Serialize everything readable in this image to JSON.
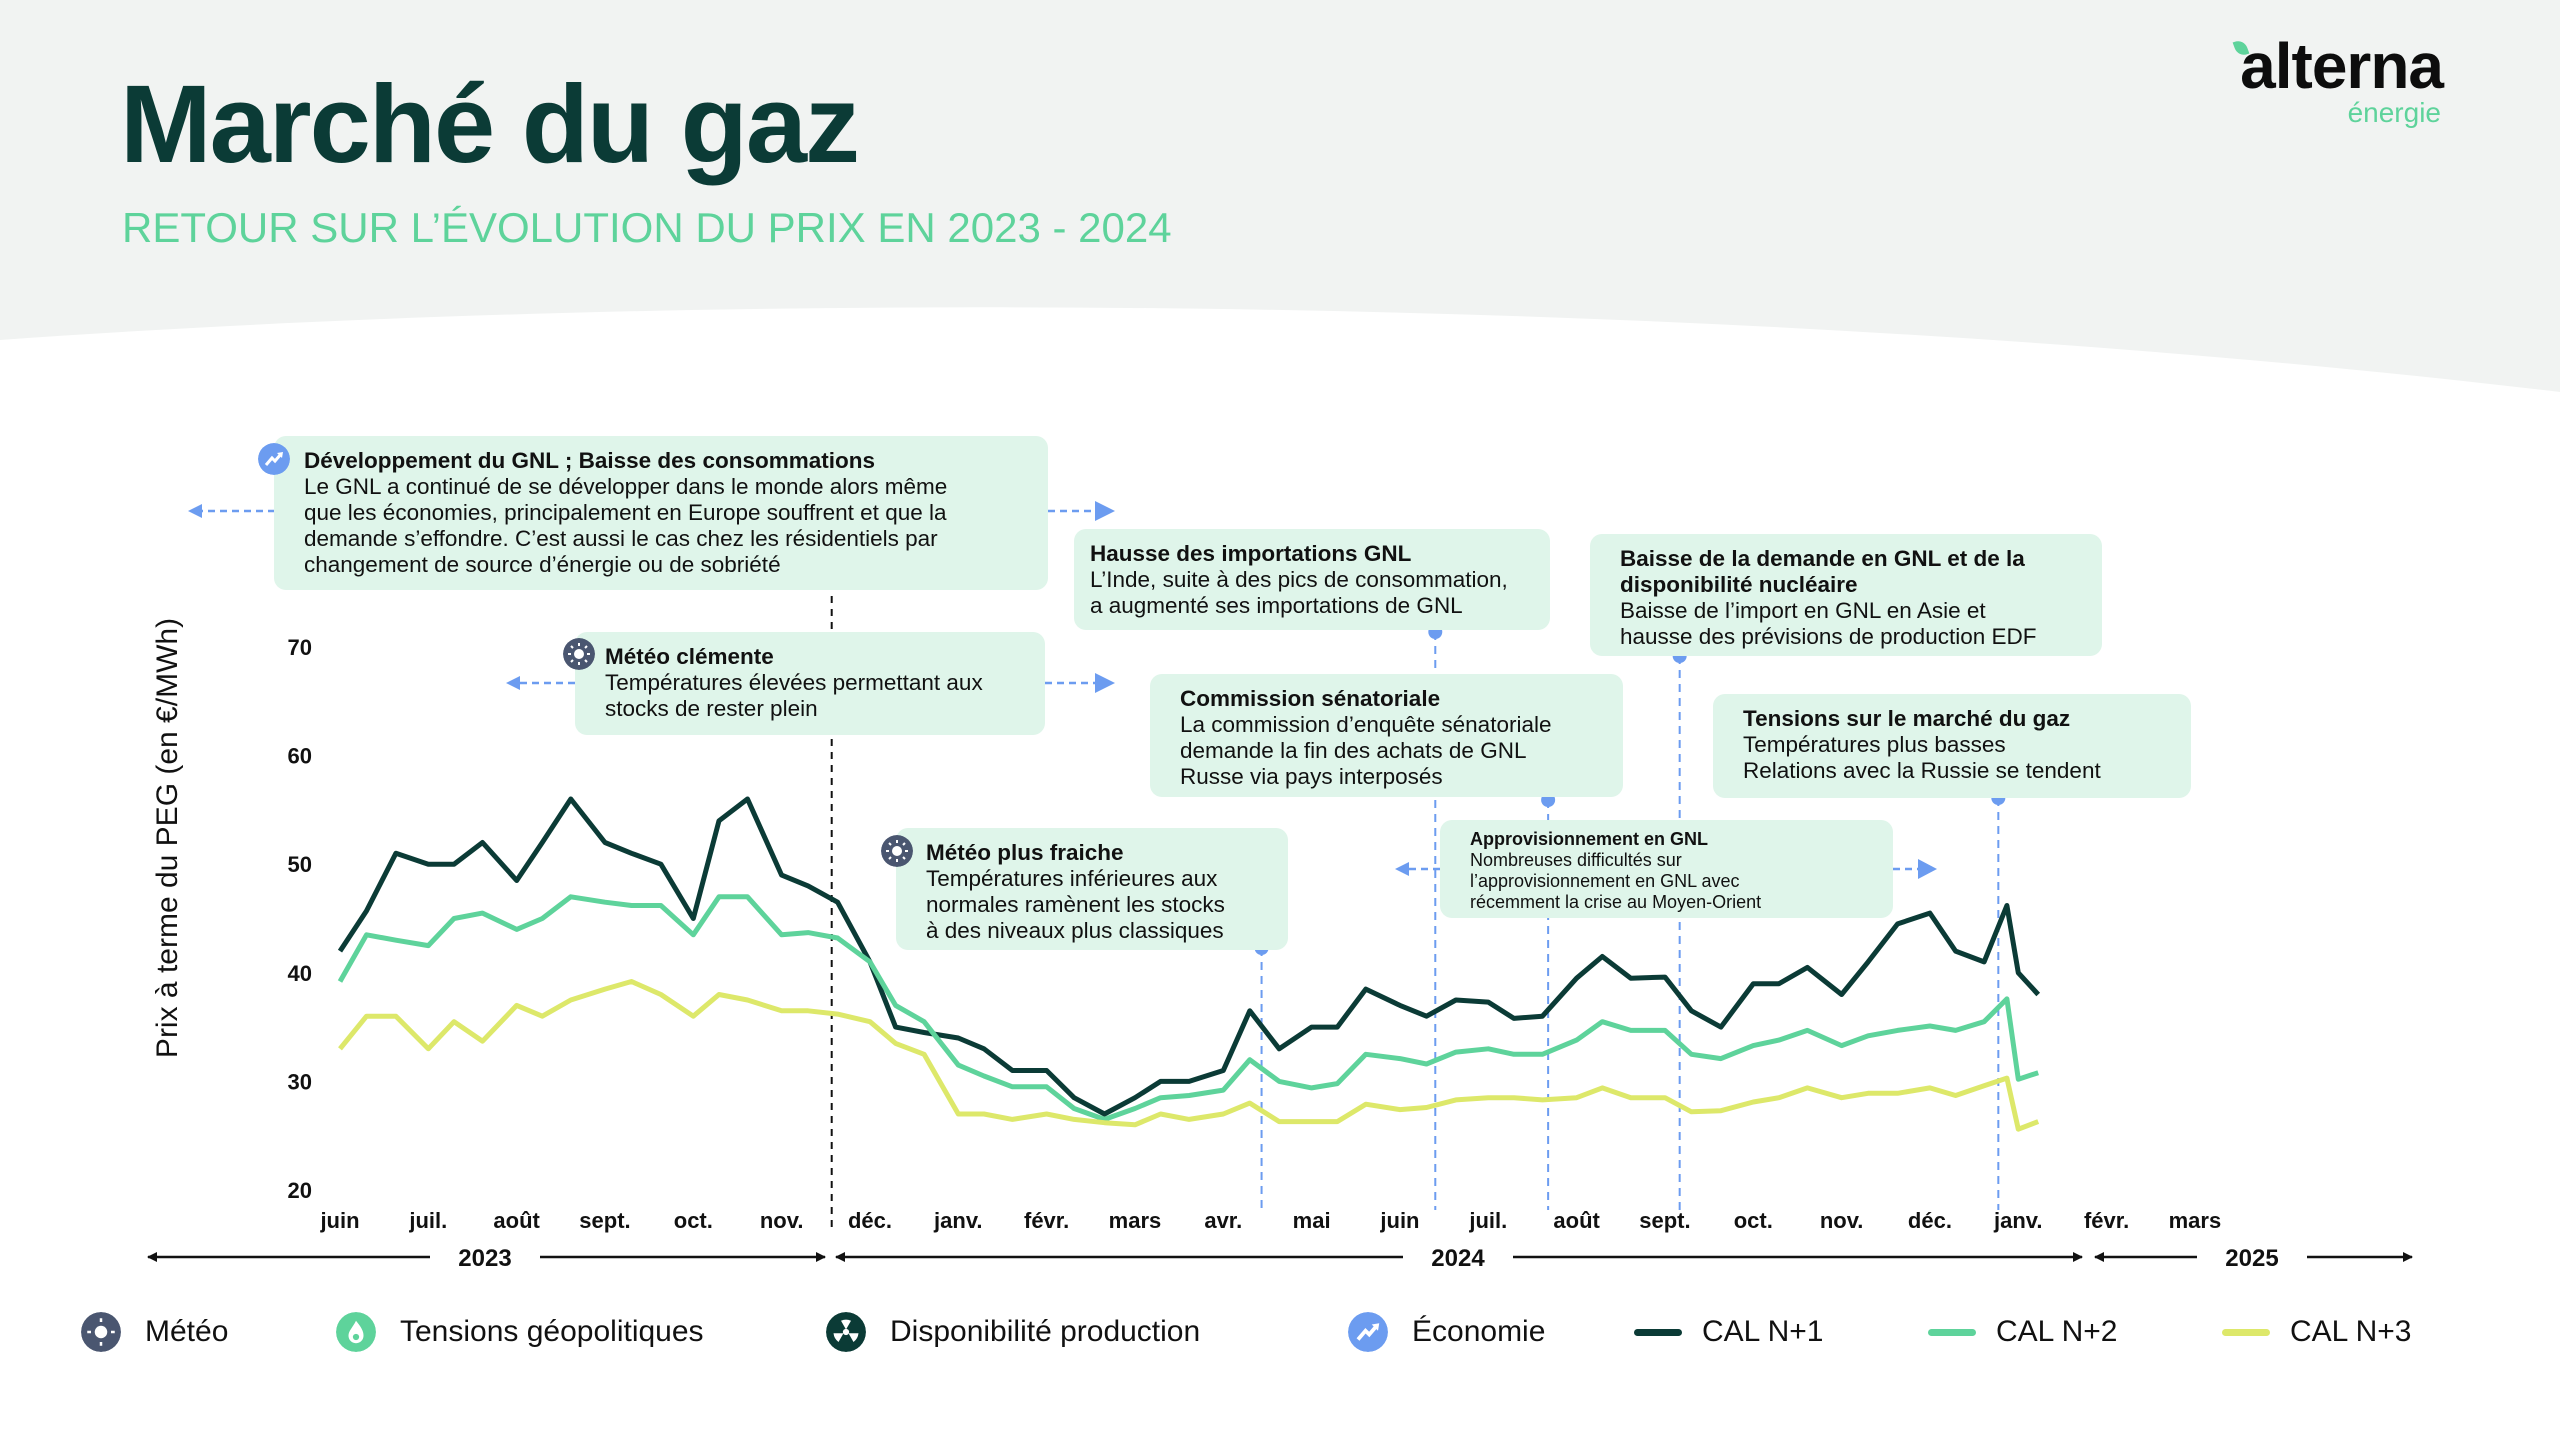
{
  "header": {
    "title": "Marché du gaz",
    "subtitle": "RETOUR SUR L’ÉVOLUTION DU PRIX EN 2023 - 2024"
  },
  "logo": {
    "word": "alterna",
    "sub": "énergie"
  },
  "colors": {
    "cal_n1": "#0b3b36",
    "cal_n2": "#5ed39b",
    "cal_n3": "#dde86a",
    "annotation_bg": "#dff5ea",
    "marker_blue": "#6c9cf0",
    "meteo": "#4a5670",
    "tensions": "#5ed39b",
    "production": "#0b3b36",
    "economie": "#6c9cf0"
  },
  "legend": {
    "categories": [
      {
        "label": "Météo",
        "icon": "sun-icon"
      },
      {
        "label": "Tensions géopolitiques",
        "icon": "flame-icon"
      },
      {
        "label": "Disponibilité production",
        "icon": "radiation-icon"
      },
      {
        "label": "Économie",
        "icon": "trend-up-icon"
      }
    ],
    "series": [
      {
        "label": "CAL N+1"
      },
      {
        "label": "CAL N+2"
      },
      {
        "label": "CAL N+3"
      }
    ]
  },
  "annotations": [
    {
      "category": "Économie",
      "icon": "trend-up-icon",
      "title": "Développement du GNL ; Baisse des consommations",
      "lines": [
        "Le GNL a continué de se développer dans le monde alors même",
        "que les économies, principalement en Europe souffrent et que la",
        "demande s’effondre. C’est aussi le cas chez les résidentiels par",
        "changement de source d’énergie ou de sobriété"
      ]
    },
    {
      "category": "Météo",
      "icon": "sun-icon",
      "title": "Météo clémente",
      "lines": [
        "Températures élevées permettant aux",
        "stocks de rester plein"
      ]
    },
    {
      "title": "Hausse des importations GNL",
      "date": "2024-06-13",
      "lines": [
        "L’Inde, suite à des pics de consommation,",
        "a augmenté ses importations de GNL"
      ]
    },
    {
      "title": "Baisse de la demande en GNL et de la\ndisponibilité nucléaire",
      "date": "2024-09-06",
      "lines": [
        "Baisse de l’import en GNL en Asie et",
        "hausse des prévisions de production EDF"
      ]
    },
    {
      "title": "Commission sénatoriale",
      "date": "2024-07-22",
      "lines": [
        "La commission d’enquête sénatoriale",
        "demande la fin des achats de GNL",
        "Russe via pays interposés"
      ]
    },
    {
      "title": "Tensions sur le marché du gaz",
      "date": "2024-12-25",
      "lines": [
        "Températures plus basses",
        "Relations avec la Russie se tendent"
      ]
    },
    {
      "category": "Météo",
      "icon": "sun-icon",
      "title": "Météo plus fraiche",
      "date": "2024-04-14",
      "lines": [
        "Températures inférieures aux",
        "normales ramènent les stocks",
        "à des niveaux plus classiques"
      ]
    },
    {
      "title": "Approvisionnement en GNL",
      "lines": [
        "Nombreuses difficultés sur",
        "l’approvisionnement en GNL avec",
        "récemment la crise au Moyen-Orient"
      ]
    }
  ],
  "chart_data": {
    "type": "line",
    "ylabel": "Prix à terme du PEG (en €/MWh)",
    "ylim": [
      20,
      70
    ],
    "yticks": [
      "20",
      "30",
      "40",
      "50",
      "60",
      "70"
    ],
    "xlim": [
      "2023-06-01",
      "2025-03-01"
    ],
    "xticks": [
      "juin",
      "juil.",
      "août",
      "sept.",
      "oct.",
      "nov.",
      "déc.",
      "janv.",
      "févr.",
      "mars",
      "avr.",
      "mai",
      "juin",
      "juil.",
      "août",
      "sept.",
      "oct.",
      "nov.",
      "déc.",
      "janv.",
      "févr.",
      "mars"
    ],
    "years": [
      {
        "label": "2023",
        "from": "2023-06-01",
        "to": "2023-11-30"
      },
      {
        "label": "2024",
        "from": "2023-12-01",
        "to": "2024-12-31"
      },
      {
        "label": "2025",
        "from": "2025-01-01",
        "to": "2025-03-31"
      }
    ],
    "period_divider": "2023-11-18",
    "grid": false,
    "legend": "bottom",
    "x": [
      "2023-06-01",
      "2023-06-10",
      "2023-06-20",
      "2023-07-01",
      "2023-07-10",
      "2023-07-20",
      "2023-08-01",
      "2023-08-10",
      "2023-08-20",
      "2023-09-01",
      "2023-09-10",
      "2023-09-20",
      "2023-10-01",
      "2023-10-10",
      "2023-10-20",
      "2023-11-01",
      "2023-11-10",
      "2023-11-20",
      "2023-12-01",
      "2023-12-10",
      "2023-12-20",
      "2024-01-01",
      "2024-01-10",
      "2024-01-20",
      "2024-02-01",
      "2024-02-10",
      "2024-02-20",
      "2024-03-01",
      "2024-03-10",
      "2024-03-20",
      "2024-04-01",
      "2024-04-10",
      "2024-04-20",
      "2024-05-01",
      "2024-05-10",
      "2024-05-20",
      "2024-06-01",
      "2024-06-10",
      "2024-06-20",
      "2024-07-01",
      "2024-07-10",
      "2024-07-20",
      "2024-08-01",
      "2024-08-10",
      "2024-08-20",
      "2024-09-01",
      "2024-09-10",
      "2024-09-20",
      "2024-10-01",
      "2024-10-10",
      "2024-10-20",
      "2024-11-01",
      "2024-11-10",
      "2024-11-20",
      "2024-12-01",
      "2024-12-10",
      "2024-12-20",
      "2024-12-28",
      "2025-01-01",
      "2025-01-08"
    ],
    "series": [
      {
        "name": "CAL N+1",
        "color": "#0b3b36",
        "values": [
          42,
          45.7,
          51,
          50,
          50,
          52,
          48.5,
          52,
          56,
          52,
          51,
          50,
          45,
          54,
          56,
          49,
          48,
          46.5,
          41,
          35,
          34.5,
          34,
          33,
          31,
          31,
          28.5,
          27,
          28.5,
          30,
          30,
          31,
          36.5,
          33,
          35,
          35,
          38.5,
          37,
          36,
          37.5,
          37.3,
          35.8,
          36,
          39.5,
          41.5,
          39.5,
          39.6,
          36.5,
          35,
          39,
          39,
          40.5,
          38,
          41,
          44.5,
          45.5,
          42,
          41,
          46.2,
          40,
          38
        ]
      },
      {
        "name": "CAL N+2",
        "color": "#5ed39b",
        "values": [
          39.2,
          43.5,
          43,
          42.5,
          45,
          45.5,
          44,
          45,
          47,
          46.5,
          46.2,
          46.2,
          43.5,
          47,
          47,
          43.5,
          43.7,
          43.2,
          41,
          37,
          35.5,
          31.5,
          30.5,
          29.5,
          29.5,
          27.5,
          26.5,
          27.5,
          28.5,
          28.7,
          29.2,
          32,
          30,
          29.4,
          29.8,
          32.5,
          32.1,
          31.6,
          32.7,
          33,
          32.5,
          32.5,
          33.8,
          35.5,
          34.7,
          34.7,
          32.5,
          32.1,
          33.3,
          33.8,
          34.7,
          33.3,
          34.2,
          34.7,
          35.1,
          34.7,
          35.5,
          37.6,
          30.2,
          30.8
        ]
      },
      {
        "name": "CAL N+3",
        "color": "#dde86a",
        "values": [
          33,
          36,
          36,
          33,
          35.5,
          33.7,
          37,
          36,
          37.5,
          38.5,
          39.2,
          38,
          36,
          38,
          37.5,
          36.5,
          36.5,
          36.2,
          35.5,
          33.5,
          32.5,
          27,
          27,
          26.5,
          27,
          26.5,
          26.2,
          26,
          27,
          26.5,
          27,
          28,
          26.3,
          26.3,
          26.3,
          27.9,
          27.4,
          27.6,
          28.3,
          28.5,
          28.5,
          28.3,
          28.5,
          29.4,
          28.5,
          28.5,
          27.2,
          27.3,
          28.1,
          28.5,
          29.4,
          28.5,
          28.9,
          28.9,
          29.4,
          28.7,
          29.6,
          30.3,
          25.6,
          26.3
        ]
      }
    ]
  }
}
